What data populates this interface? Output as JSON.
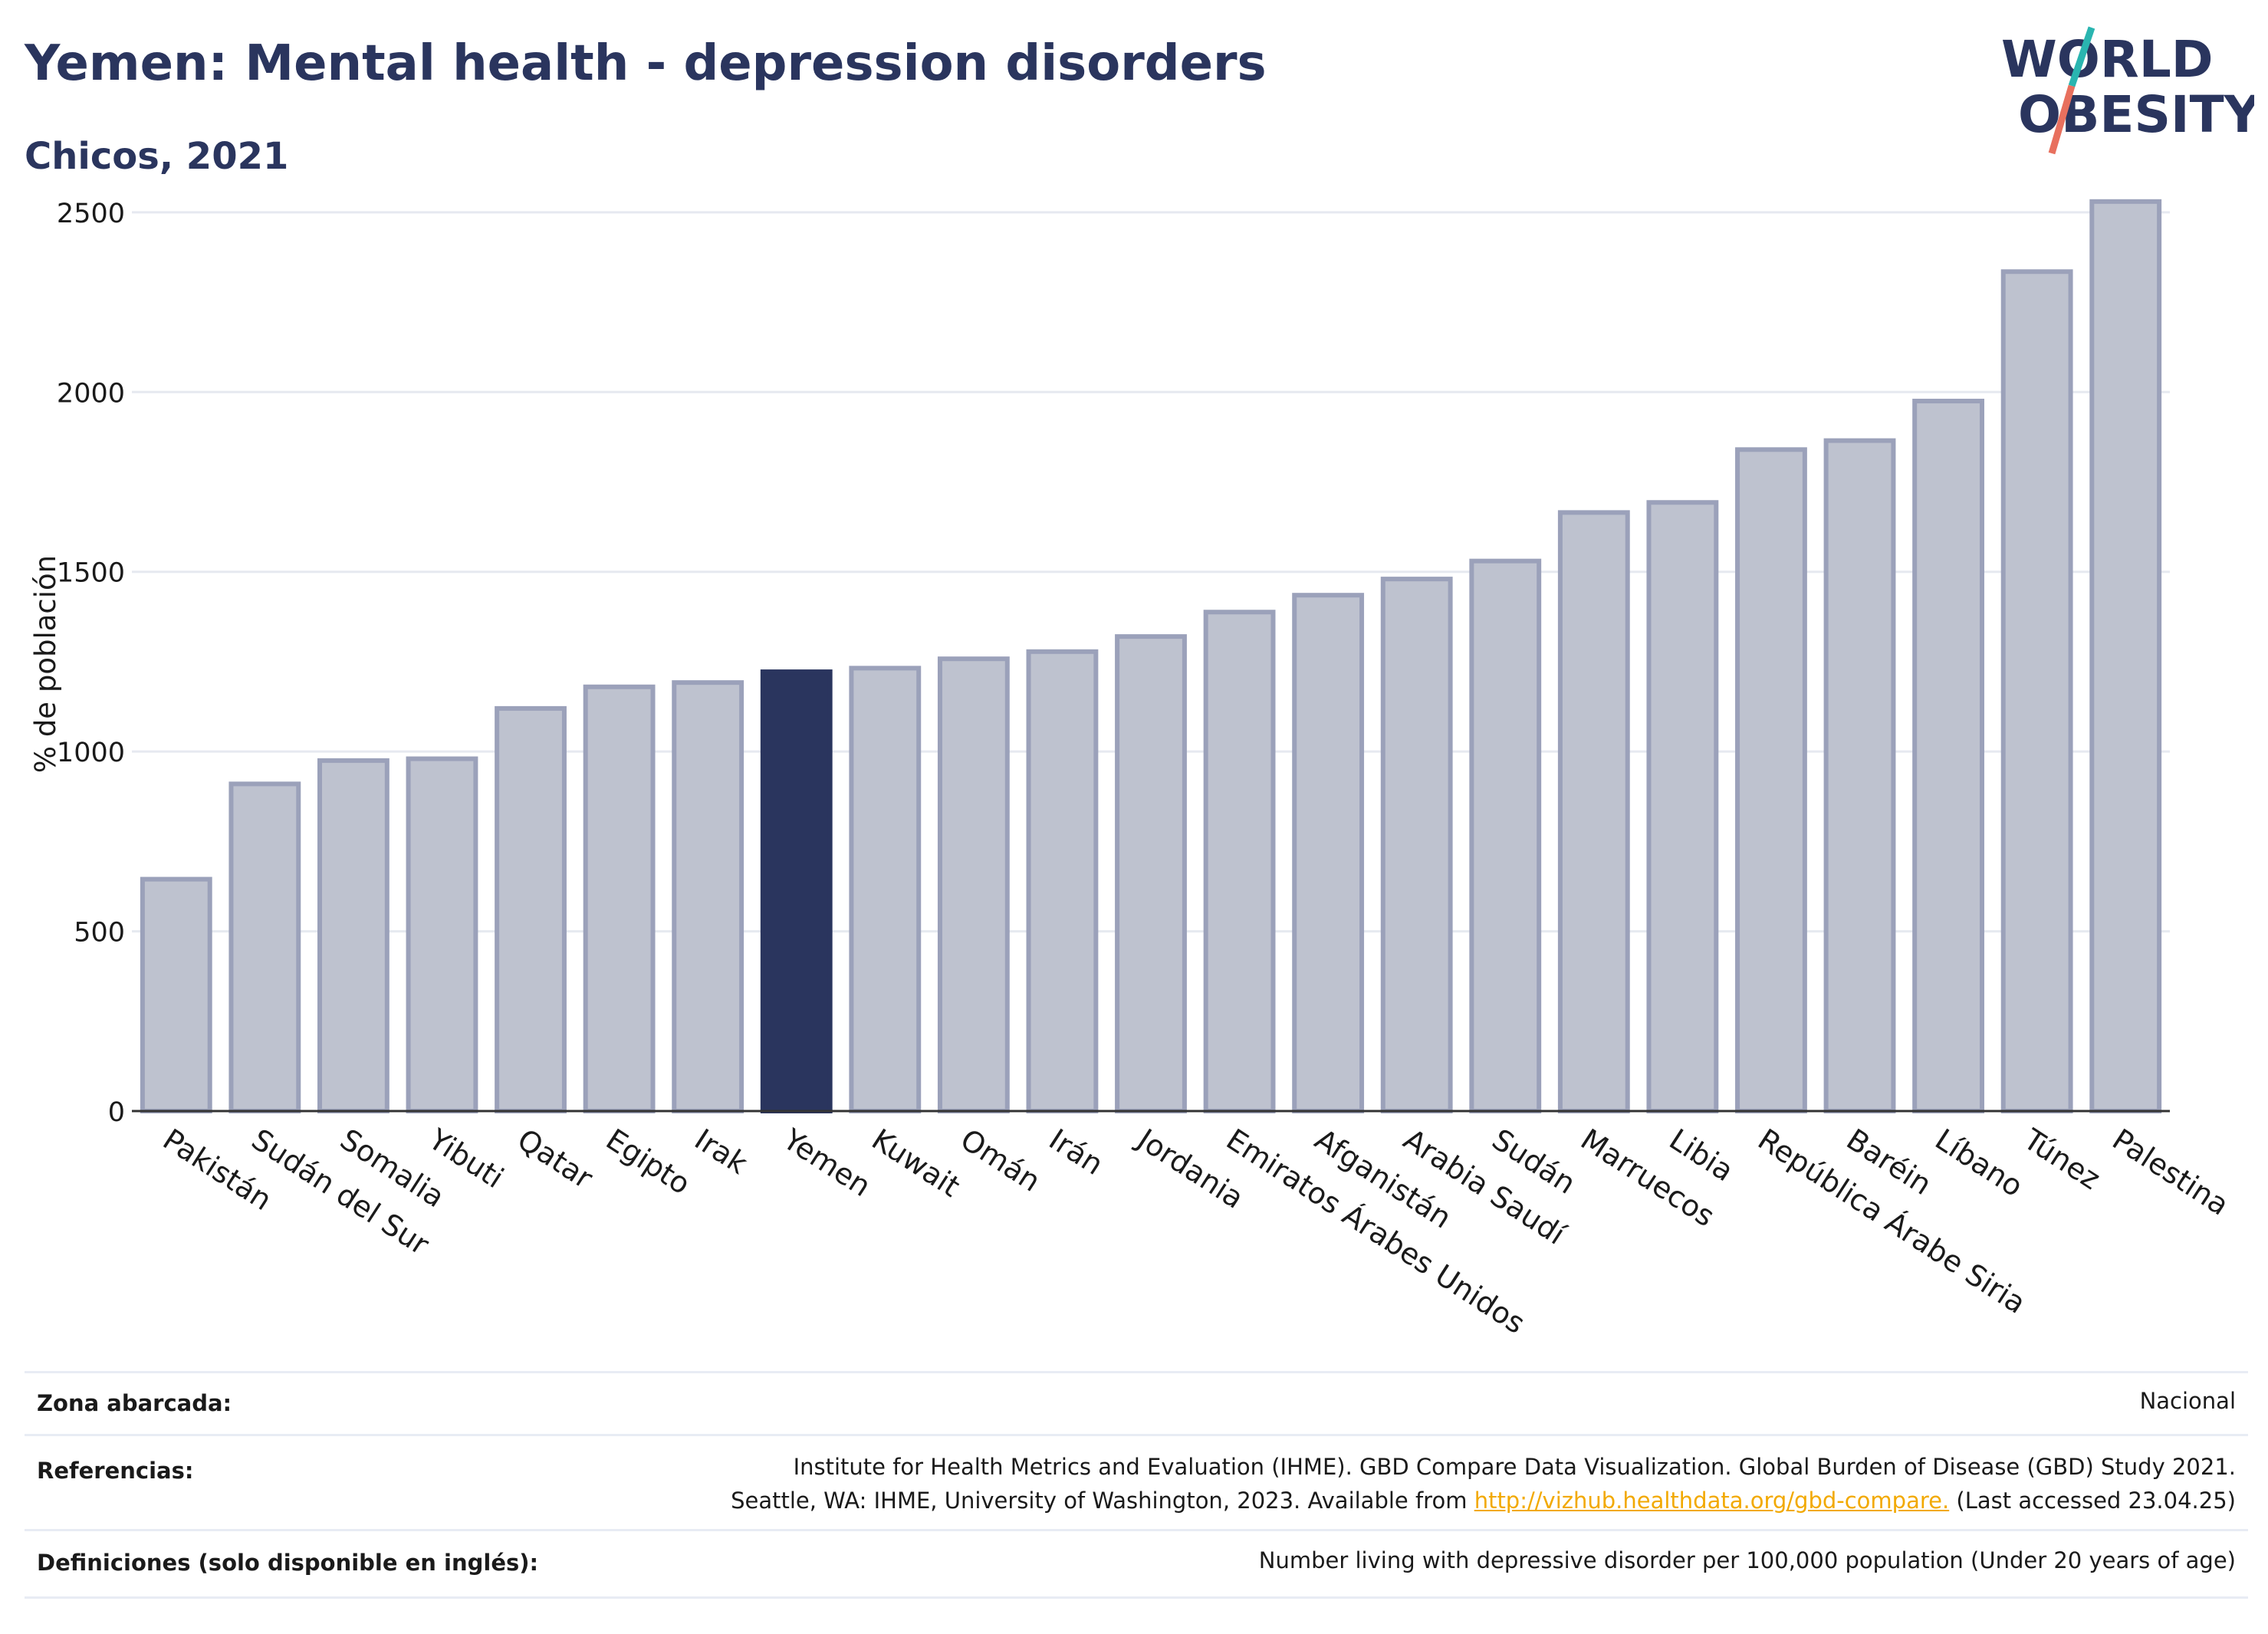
{
  "header": {
    "title": "Yemen: Mental health - depression disorders",
    "subtitle": "Chicos, 2021"
  },
  "logo": {
    "line1": "WORLD",
    "line2": "OBESITY"
  },
  "chart_data": {
    "type": "bar",
    "ylabel": "% de población",
    "xlabel": "",
    "ylim": [
      0,
      2600
    ],
    "yticks": [
      0,
      500,
      1000,
      1500,
      2000,
      2500
    ],
    "grid": true,
    "highlight": "Yemen",
    "categories": [
      "Pakistán",
      "Sudán del Sur",
      "Somalia",
      "Yibuti",
      "Qatar",
      "Egipto",
      "Irak",
      "Yemen",
      "Kuwait",
      "Omán",
      "Irán",
      "Jordania",
      "Emiratos Árabes Unidos",
      "Afganistán",
      "Arabia Saudí",
      "Sudán",
      "Marruecos",
      "Libia",
      "República Árabe Siria",
      "Baréin",
      "Líbano",
      "Túnez",
      "Palestina"
    ],
    "values": [
      645,
      910,
      975,
      980,
      1120,
      1180,
      1192,
      1222,
      1232,
      1258,
      1278,
      1320,
      1388,
      1435,
      1480,
      1530,
      1665,
      1693,
      1840,
      1865,
      1975,
      2335,
      2530
    ],
    "colors": {
      "bar": "#bec2cf",
      "bar_stroke": "#9ba1ba",
      "highlight": "#2a355e",
      "grid": "#e6e9f0",
      "axis": "#333333"
    }
  },
  "footer": {
    "rows": [
      {
        "label": "Zona abarcada:",
        "lines": [
          "Nacional"
        ]
      },
      {
        "label": "Referencias:",
        "lines": [
          "Institute for Health Metrics and Evaluation (IHME). GBD Compare Data Visualization. Global Burden of Disease (GBD) Study 2021.",
          "Seattle, WA: IHME, University of Washington, 2023. Available from "
        ],
        "link": "http://vizhub.healthdata.org/gbd-compare.",
        "after_link": " (Last accessed 23.04.25)"
      },
      {
        "label": "Definiciones (solo disponible en inglés):",
        "lines": [
          "Number living with depressive disorder per 100,000 population (Under 20 years of age)"
        ]
      }
    ]
  }
}
